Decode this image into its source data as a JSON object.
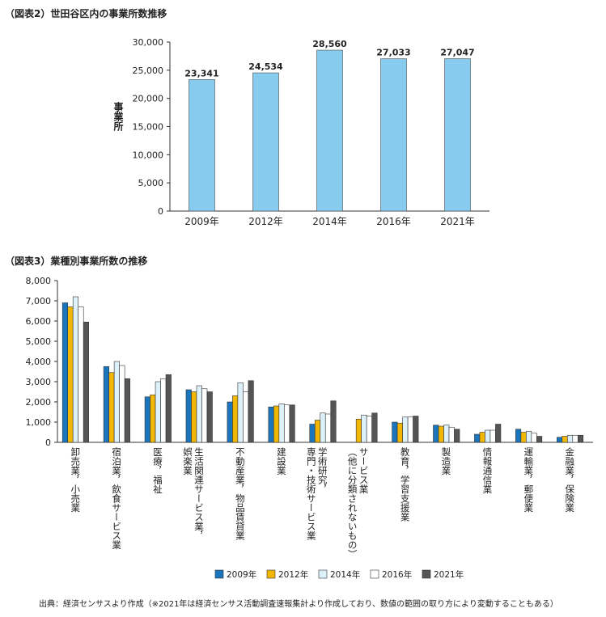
{
  "footer": "出典：経済センサスより作成（※2021年は経済センサス活動調査速報集計より作成しており、数値の範囲の取り方により変動することもある）",
  "chart_data": [
    {
      "type": "bar",
      "title": "（図表2）世田谷区内の事業所数推移",
      "xlabel": "",
      "ylabel": "事業所",
      "categories": [
        "2009年",
        "2012年",
        "2014年",
        "2016年",
        "2021年"
      ],
      "values": [
        23341,
        24534,
        28560,
        27033,
        27047
      ],
      "data_labels": [
        "23,341",
        "24,534",
        "28,560",
        "27,033",
        "27,047"
      ],
      "ylim": [
        0,
        30000
      ],
      "yticks": [
        0,
        5000,
        10000,
        15000,
        20000,
        25000,
        30000
      ],
      "ytick_labels": [
        "0",
        "5,000",
        "10,000",
        "15,000",
        "20,000",
        "25,000",
        "30,000"
      ],
      "bar_color": "#87CBEF",
      "grid": false
    },
    {
      "type": "bar",
      "title": "（図表3）業種別事業所数の推移",
      "xlabel": "",
      "ylabel": "",
      "ylim": [
        0,
        8000
      ],
      "yticks": [
        0,
        1000,
        2000,
        3000,
        4000,
        5000,
        6000,
        7000,
        8000
      ],
      "ytick_labels": [
        "0",
        "1,000",
        "2,000",
        "3,000",
        "4,000",
        "5,000",
        "6,000",
        "7,000",
        "8,000"
      ],
      "categories": [
        "卸売業，小売業",
        "宿泊業，飲食サービス業",
        "医療，福祉",
        "生活関連サービス業，娯楽業",
        "不動産業，物品賃貸業",
        "建設業",
        "学術研究，専門・技術サービス業",
        "サービス業（他に分類されないもの）",
        "教育，学習支援業",
        "製造業",
        "情報通信業",
        "運輸業，郵便業",
        "金融業，保険業"
      ],
      "category_label_lines": [
        [
          "卸売業，小売業"
        ],
        [
          "宿泊業，飲食サービス業"
        ],
        [
          "医療，福祉"
        ],
        [
          "生活関連サービス業，",
          "娯楽業"
        ],
        [
          "不動産業，物品賃貸業"
        ],
        [
          "建設業"
        ],
        [
          "学術研究，",
          "専門・技術サービス業"
        ],
        [
          "サービス業",
          "（他に分類されないもの）"
        ],
        [
          "教育，学習支援業"
        ],
        [
          "製造業"
        ],
        [
          "情報通信業"
        ],
        [
          "運輸業，郵便業"
        ],
        [
          "金融業，保険業"
        ]
      ],
      "legend_position": "bottom",
      "series": [
        {
          "name": "2009年",
          "color": "#1B75BC",
          "values": [
            6900,
            3750,
            2250,
            2600,
            2000,
            1750,
            900,
            0,
            1000,
            850,
            400,
            650,
            250
          ]
        },
        {
          "name": "2012年",
          "color": "#F2B705",
          "values": [
            6700,
            3450,
            2350,
            2500,
            2300,
            1800,
            1100,
            1150,
            950,
            800,
            500,
            500,
            300
          ]
        },
        {
          "name": "2014年",
          "color": "#DDF1FB",
          "values": [
            7200,
            4000,
            3000,
            2800,
            2950,
            1900,
            1450,
            1350,
            1250,
            850,
            600,
            550,
            350
          ]
        },
        {
          "name": "2016年",
          "color": "#FFFFFF",
          "values": [
            6700,
            3800,
            3150,
            2650,
            2500,
            1850,
            1400,
            1300,
            1250,
            750,
            600,
            450,
            350
          ]
        },
        {
          "name": "2021年",
          "color": "#555555",
          "values": [
            5950,
            3150,
            3350,
            2500,
            3050,
            1850,
            2050,
            1450,
            1300,
            650,
            900,
            300,
            350
          ]
        }
      ]
    }
  ]
}
